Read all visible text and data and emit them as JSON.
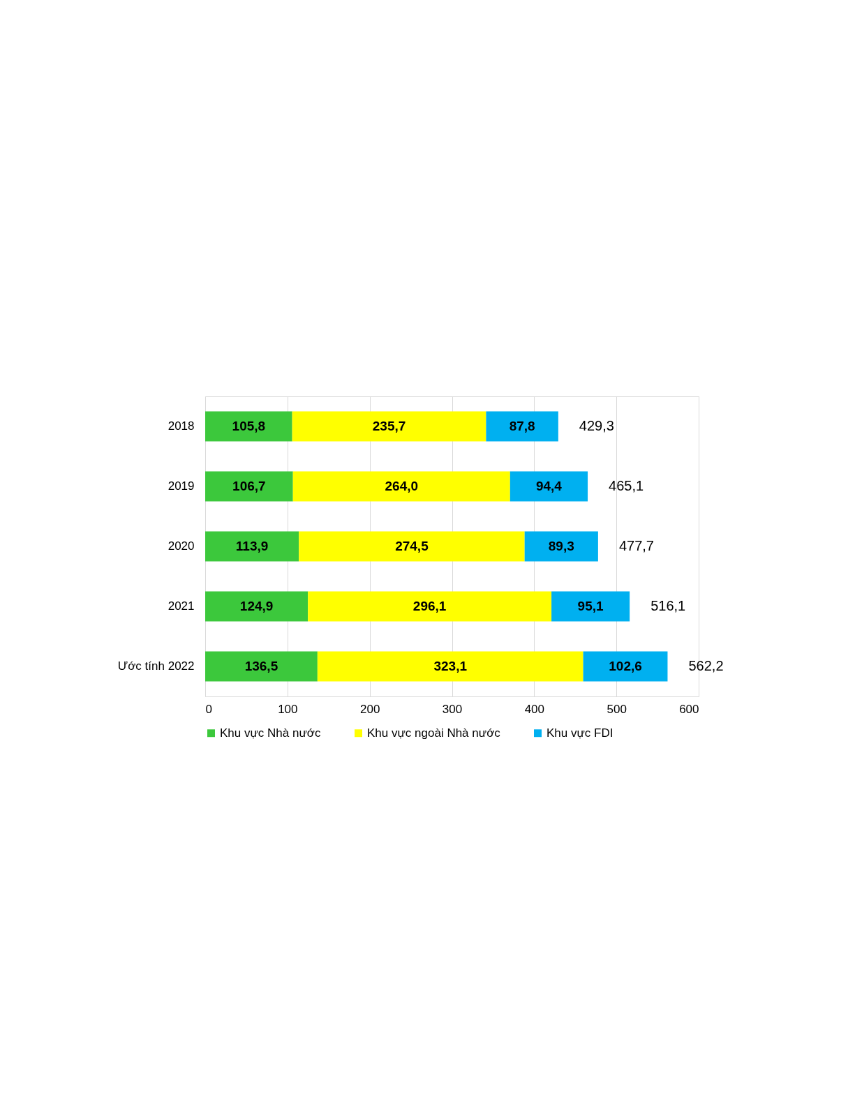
{
  "chart_data": {
    "type": "bar",
    "orientation": "horizontal",
    "stacked": true,
    "categories": [
      "2018",
      "2019",
      "2020",
      "2021",
      "Ước tính 2022"
    ],
    "series": [
      {
        "name": "Khu vực Nhà nước",
        "color": "#3cc83c",
        "values": [
          105.8,
          106.7,
          113.9,
          124.9,
          136.5
        ],
        "value_labels": [
          "105,8",
          "106,7",
          "113,9",
          "124,9",
          "136,5"
        ]
      },
      {
        "name": "Khu vực ngoài Nhà nước",
        "color": "#ffff00",
        "values": [
          235.7,
          264.0,
          274.5,
          296.1,
          323.1
        ],
        "value_labels": [
          "235,7",
          "264,0",
          "274,5",
          "296,1",
          "323,1"
        ]
      },
      {
        "name": "Khu vực FDI",
        "color": "#00b0f0",
        "values": [
          87.8,
          94.4,
          89.3,
          95.1,
          102.6
        ],
        "value_labels": [
          "87,8",
          "94,4",
          "89,3",
          "95,1",
          "102,6"
        ]
      }
    ],
    "totals": [
      "429,3",
      "465,1",
      "477,7",
      "516,1",
      "562,2"
    ],
    "xlim": [
      0,
      600
    ],
    "xticks": [
      0,
      100,
      200,
      300,
      400,
      500,
      600
    ],
    "grid": "x",
    "legend": "bottom"
  }
}
